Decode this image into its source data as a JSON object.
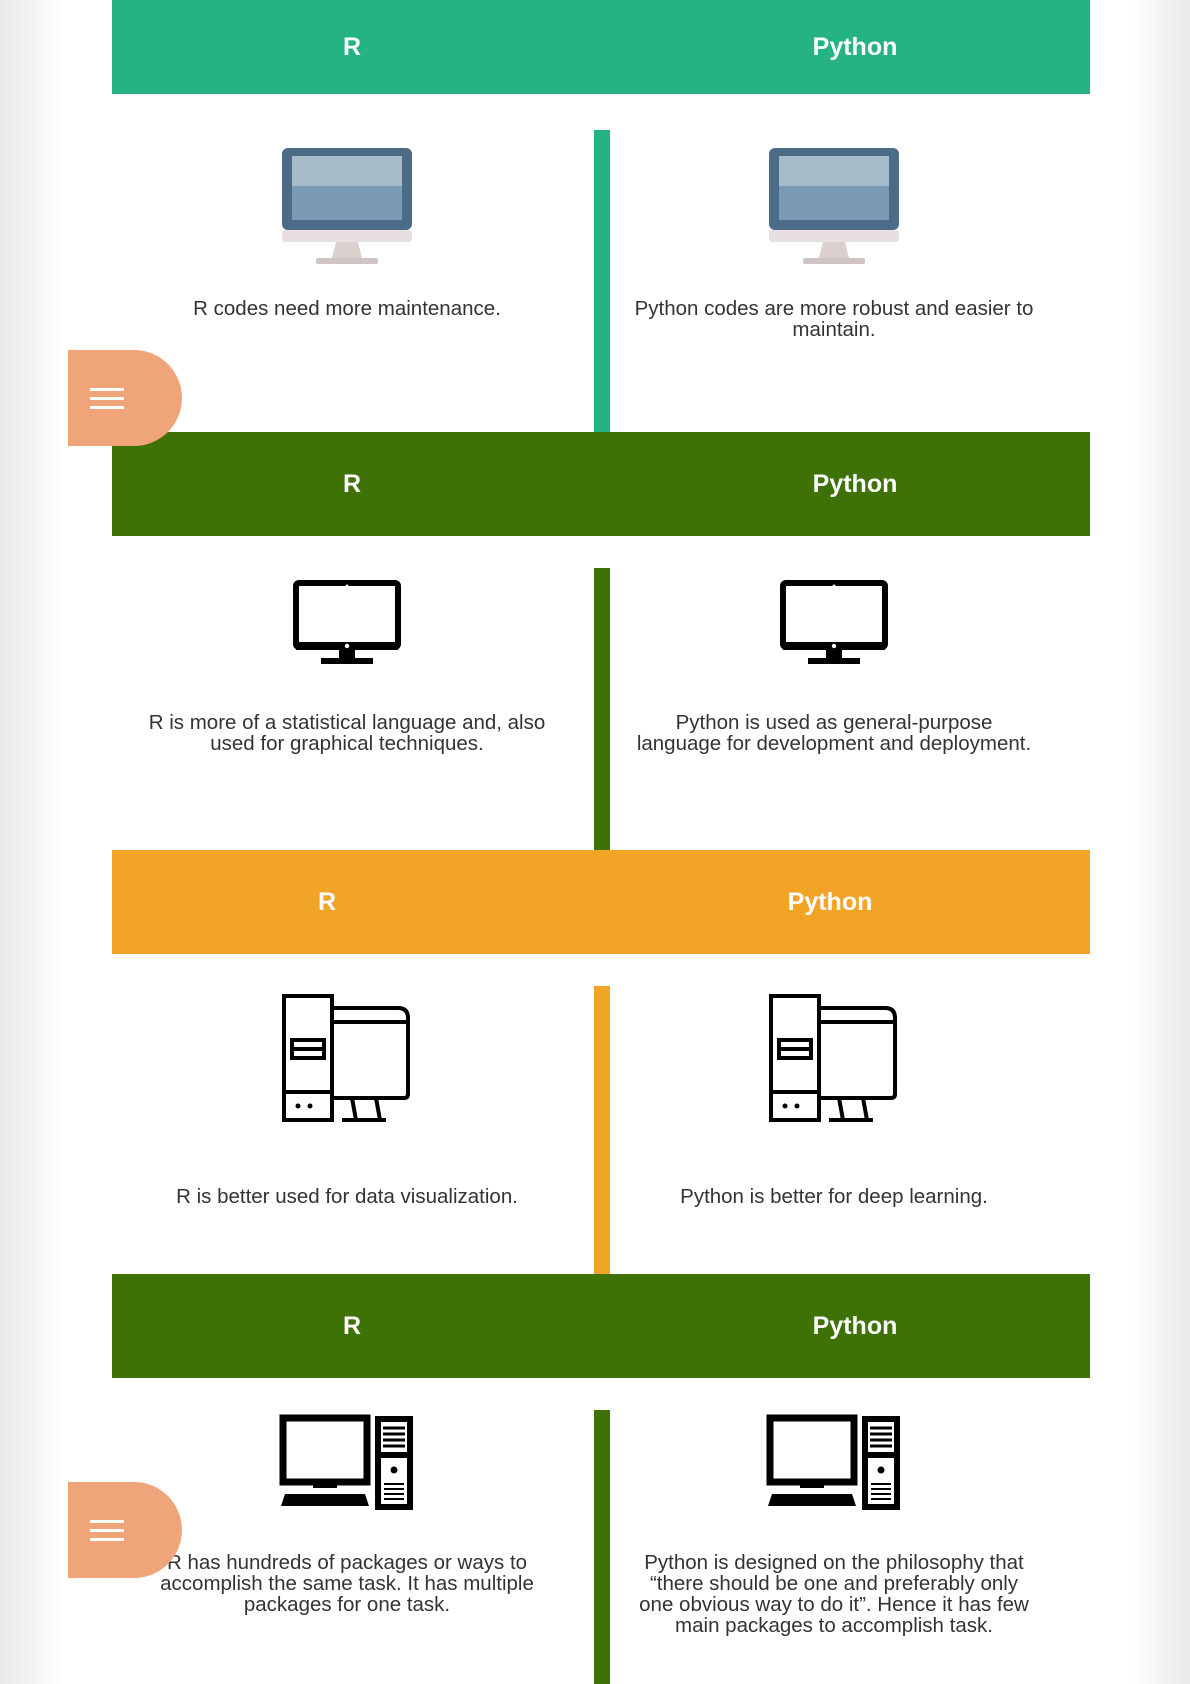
{
  "colors": {
    "teal": "#26b384",
    "green": "#3f7206",
    "orange": "#f2a426",
    "menu": "#f0a479"
  },
  "sections": [
    {
      "header_r": "R",
      "header_python": "Python",
      "icon": "monitor-screen-icon",
      "r_text": "R codes need more maintenance.",
      "python_text": "Python codes are more robust and easier to maintain."
    },
    {
      "header_r": "R",
      "header_python": "Python",
      "icon": "black-monitor-icon",
      "r_text": "R is more of a statistical language and, also used for graphical techniques.",
      "python_text": "Python is used as general-purpose language for development and deployment."
    },
    {
      "header_r": "R",
      "header_python": "Python",
      "icon": "desktop-tower-icon",
      "r_text": "R is better used for data visualization.",
      "python_text": "Python is better for deep learning."
    },
    {
      "header_r": "R",
      "header_python": "Python",
      "icon": "computer-keyboard-icon",
      "r_text": "R has hundreds of packages or ways to accomplish the same task. It has multiple packages for one task.",
      "python_text": "Python is designed on the philosophy that “there should be one and preferably only one obvious way to do it”. Hence it has few main packages to accomplish task."
    }
  ],
  "menu_buttons": [
    {
      "icon": "hamburger-menu-icon"
    },
    {
      "icon": "hamburger-menu-icon"
    }
  ]
}
